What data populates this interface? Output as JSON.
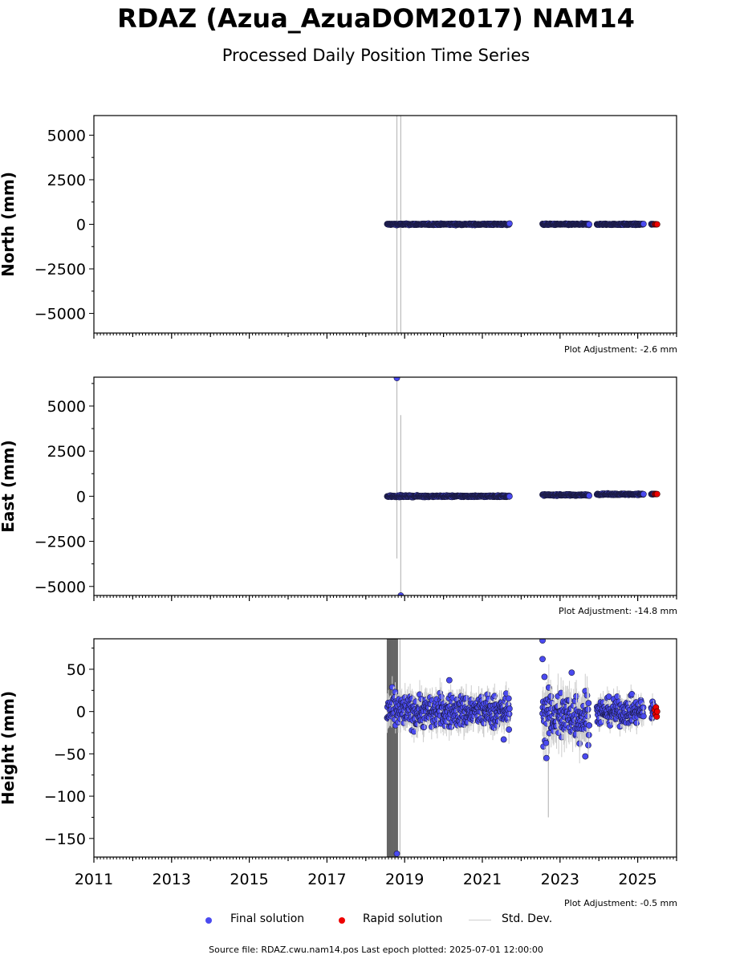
{
  "header": {
    "title": "RDAZ (Azua_AzuaDOM2017) NAM14",
    "subtitle": "Processed Daily Position Time Series"
  },
  "legend": {
    "final_label": "Final solution",
    "rapid_label": "Rapid solution",
    "std_label": "Std. Dev.",
    "final_color": "#4a4af0",
    "rapid_color": "#ee0000",
    "std_color": "#cccccc"
  },
  "footer": {
    "source": "Source file: RDAZ.cwu.nam14.pos  Last epoch plotted: 2025-07-01 12:00:00"
  },
  "chart_data": [
    {
      "type": "scatter",
      "component": "north",
      "ylabel": "North (mm)",
      "adjustment_label": "Plot Adjustment: -2.6 mm",
      "xlim": [
        2011.0,
        2026.0
      ],
      "ylim": [
        -6100,
        6100
      ],
      "yticks": [
        -5000,
        -2500,
        0,
        2500,
        5000
      ],
      "ytick_labels": [
        "−5000",
        "−2500",
        "0",
        "2500",
        "5000"
      ],
      "final_segments": [
        {
          "start": 2018.55,
          "end": 2021.7,
          "center": 0,
          "spread": 25
        },
        {
          "start": 2022.55,
          "end": 2023.75,
          "center": 0,
          "spread": 25
        },
        {
          "start": 2023.95,
          "end": 2025.15,
          "center": 0,
          "spread": 25
        },
        {
          "start": 2025.35,
          "end": 2025.42,
          "center": 0,
          "spread": 25
        }
      ],
      "rapid_points": [
        {
          "x": 2025.44,
          "y": 0
        },
        {
          "x": 2025.46,
          "y": 5
        },
        {
          "x": 2025.48,
          "y": -5
        },
        {
          "x": 2025.5,
          "y": 0
        }
      ],
      "outlier_points": [],
      "std_bars": [
        {
          "x": 2018.8,
          "ylo": -6100,
          "yhi": 6100
        },
        {
          "x": 2018.9,
          "ylo": -6100,
          "yhi": 6100
        }
      ]
    },
    {
      "type": "scatter",
      "component": "east",
      "ylabel": "East (mm)",
      "adjustment_label": "Plot Adjustment: -14.8 mm",
      "xlim": [
        2011.0,
        2026.0
      ],
      "ylim": [
        -5500,
        6600
      ],
      "yticks": [
        -5000,
        -2500,
        0,
        2500,
        5000
      ],
      "ytick_labels": [
        "−5000",
        "−2500",
        "0",
        "2500",
        "5000"
      ],
      "final_segments": [
        {
          "start": 2018.55,
          "end": 2021.7,
          "center": 0,
          "spread": 30
        },
        {
          "start": 2022.55,
          "end": 2023.75,
          "center": 70,
          "spread": 25
        },
        {
          "start": 2023.95,
          "end": 2025.15,
          "center": 110,
          "spread": 25
        },
        {
          "start": 2025.35,
          "end": 2025.42,
          "center": 120,
          "spread": 25
        }
      ],
      "rapid_points": [
        {
          "x": 2025.44,
          "y": 120
        },
        {
          "x": 2025.46,
          "y": 125
        },
        {
          "x": 2025.48,
          "y": 118
        },
        {
          "x": 2025.5,
          "y": 122
        }
      ],
      "outlier_points": [
        {
          "x": 2018.8,
          "y": 6550
        },
        {
          "x": 2018.9,
          "y": -5500
        }
      ],
      "std_bars": [
        {
          "x": 2018.8,
          "ylo": -3450,
          "yhi": 6550
        },
        {
          "x": 2018.9,
          "ylo": -5500,
          "yhi": 4500
        }
      ]
    },
    {
      "type": "scatter",
      "component": "height",
      "ylabel": "Height (mm)",
      "adjustment_label": "Plot Adjustment: -0.5 mm",
      "xlim": [
        2011.0,
        2026.0
      ],
      "ylim": [
        -172,
        86
      ],
      "yticks": [
        -150,
        -100,
        -50,
        0,
        50
      ],
      "ytick_labels": [
        "−150",
        "−100",
        "−50",
        "0",
        "50"
      ],
      "xticks": [
        2011,
        2013,
        2015,
        2017,
        2019,
        2021,
        2023,
        2025
      ],
      "xtick_labels": [
        "2011",
        "2013",
        "2015",
        "2017",
        "2019",
        "2021",
        "2023",
        "2025"
      ],
      "final_segments": [
        {
          "start": 2018.55,
          "end": 2021.7,
          "center": 0,
          "spread": 13
        },
        {
          "start": 2022.55,
          "end": 2023.75,
          "center": -5,
          "spread": 20
        },
        {
          "start": 2023.95,
          "end": 2025.15,
          "center": 0,
          "spread": 10
        },
        {
          "start": 2025.35,
          "end": 2025.42,
          "center": 0,
          "spread": 8
        }
      ],
      "rapid_points": [
        {
          "x": 2025.44,
          "y": 2
        },
        {
          "x": 2025.46,
          "y": -3
        },
        {
          "x": 2025.47,
          "y": 5
        },
        {
          "x": 2025.49,
          "y": -6
        },
        {
          "x": 2025.5,
          "y": 0
        }
      ],
      "outlier_points": [
        {
          "x": 2022.55,
          "y": 84
        },
        {
          "x": 2022.55,
          "y": 62
        },
        {
          "x": 2022.6,
          "y": 41
        },
        {
          "x": 2022.65,
          "y": -55
        },
        {
          "x": 2018.8,
          "y": -168
        },
        {
          "x": 2023.3,
          "y": 46
        },
        {
          "x": 2023.65,
          "y": -53
        },
        {
          "x": 2020.15,
          "y": 37
        },
        {
          "x": 2021.55,
          "y": -33
        }
      ],
      "dense_std_band": {
        "xmin": 2018.55,
        "xmax": 2018.82,
        "ylo": -172,
        "yhi": 86
      },
      "std_bars": [
        {
          "x": 2018.88,
          "ylo": -172,
          "yhi": 86
        },
        {
          "x": 2022.7,
          "ylo": -125,
          "yhi": 20
        }
      ]
    }
  ]
}
